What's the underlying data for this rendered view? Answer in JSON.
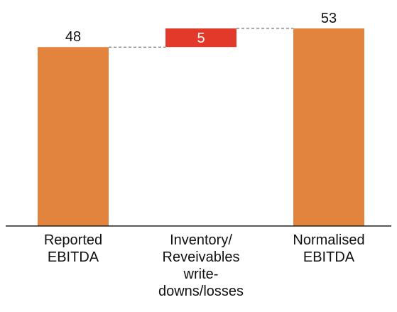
{
  "chart_data": {
    "type": "bar",
    "subtype": "waterfall",
    "categories": [
      [
        "Reported",
        "EBITDA"
      ],
      [
        "Inventory/",
        "Reveivables",
        "write-",
        "downs/losses"
      ],
      [
        "Normalised",
        "EBITDA"
      ]
    ],
    "values": [
      48,
      5,
      53
    ],
    "value_labels": [
      "48",
      "5",
      "53"
    ],
    "steps": [
      {
        "base": 0,
        "value": 48,
        "kind": "total"
      },
      {
        "base": 48,
        "value": 5,
        "kind": "increase"
      },
      {
        "base": 0,
        "value": 53,
        "kind": "total"
      }
    ],
    "ylim": [
      0,
      53
    ],
    "grid": false,
    "colors": {
      "total": "#E2843D",
      "increase": "#E23A2A",
      "connector": "#555555",
      "axis": "#222222",
      "label": "#111111",
      "inner_label": "#ffffff"
    }
  }
}
